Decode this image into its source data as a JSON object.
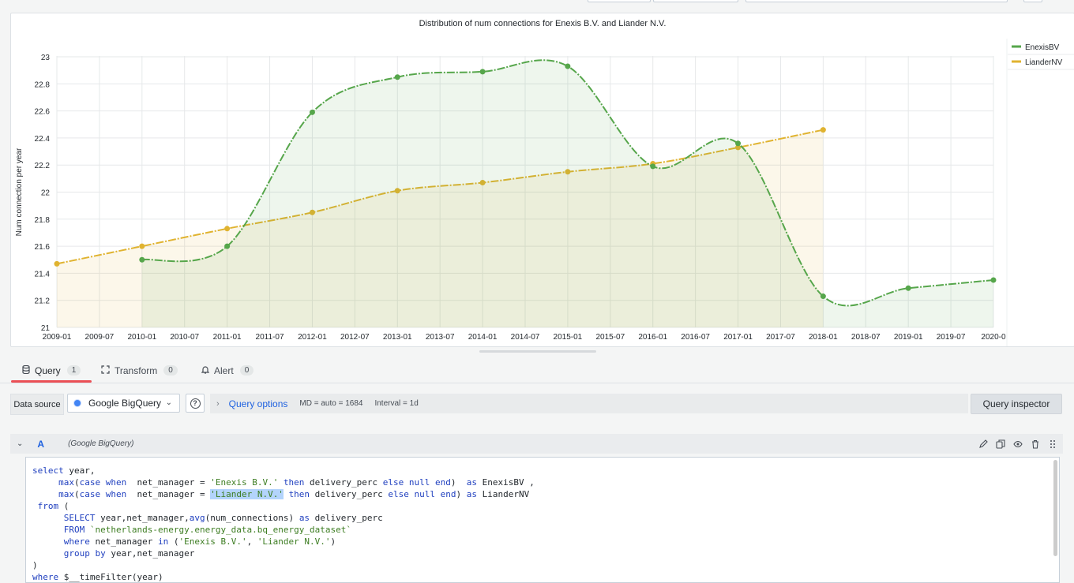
{
  "chart_data": {
    "type": "line",
    "title": "Distribution of num connections for Enexis B.V. and Liander N.V.",
    "ylabel": "Num connection per year",
    "ylim": [
      21,
      23.1
    ],
    "y_ticks": [
      "21",
      "21.2",
      "21.4",
      "21.6",
      "21.8",
      "22",
      "22.2",
      "22.4",
      "22.6",
      "22.8",
      "23"
    ],
    "x_ticks": [
      "2009-01",
      "2009-07",
      "2010-01",
      "2010-07",
      "2011-01",
      "2011-07",
      "2012-01",
      "2012-07",
      "2013-01",
      "2013-07",
      "2014-01",
      "2014-07",
      "2015-01",
      "2015-07",
      "2016-01",
      "2016-07",
      "2017-01",
      "2017-07",
      "2018-01",
      "2018-07",
      "2019-01",
      "2019-07",
      "2020-0"
    ],
    "grid": true,
    "legend_position": "right",
    "series": [
      {
        "name": "EnexisBV",
        "color": "#56a64b",
        "x": [
          2010,
          2011,
          2012,
          2013,
          2014,
          2015,
          2016,
          2017,
          2018,
          2019,
          2020
        ],
        "values": [
          21.5,
          21.6,
          22.59,
          22.85,
          22.89,
          22.93,
          22.19,
          22.36,
          21.23,
          21.29,
          21.35
        ]
      },
      {
        "name": "LianderNV",
        "color": "#e0b330",
        "x": [
          2009,
          2010,
          2011,
          2012,
          2013,
          2014,
          2015,
          2016,
          2017,
          2018
        ],
        "values": [
          21.47,
          21.6,
          21.73,
          21.85,
          22.01,
          22.07,
          22.15,
          22.21,
          22.33,
          22.46
        ]
      }
    ]
  },
  "tabs": [
    {
      "label": "Query",
      "count": "1",
      "icon": "database-icon"
    },
    {
      "label": "Transform",
      "count": "0",
      "icon": "transform-icon"
    },
    {
      "label": "Alert",
      "count": "0",
      "icon": "bell-icon"
    }
  ],
  "query_row": {
    "datasource_label": "Data source",
    "datasource_value": "Google BigQuery",
    "options_title": "Query options",
    "md_info": "MD = auto = 1684",
    "interval_info": "Interval = 1d",
    "inspector_label": "Query inspector"
  },
  "query": {
    "ref_id": "A",
    "datasource_name": "(Google BigQuery)"
  },
  "sql_lines": [
    "select year,",
    "     max(case when  net_manager = 'Enexis B.V.' then delivery_perc else null end)  as EnexisBV ,",
    "     max(case when  net_manager = 'Liander N.V.' then delivery_perc else null end) as LianderNV",
    " from (",
    "      SELECT year,net_manager,avg(num_connections) as delivery_perc",
    "      FROM `netherlands-energy.energy_data.bq_energy_dataset`",
    "      where net_manager in ('Enexis B.V.', 'Liander N.V.')",
    "      group by year,net_manager",
    ")",
    "where $__timeFilter(year)"
  ]
}
